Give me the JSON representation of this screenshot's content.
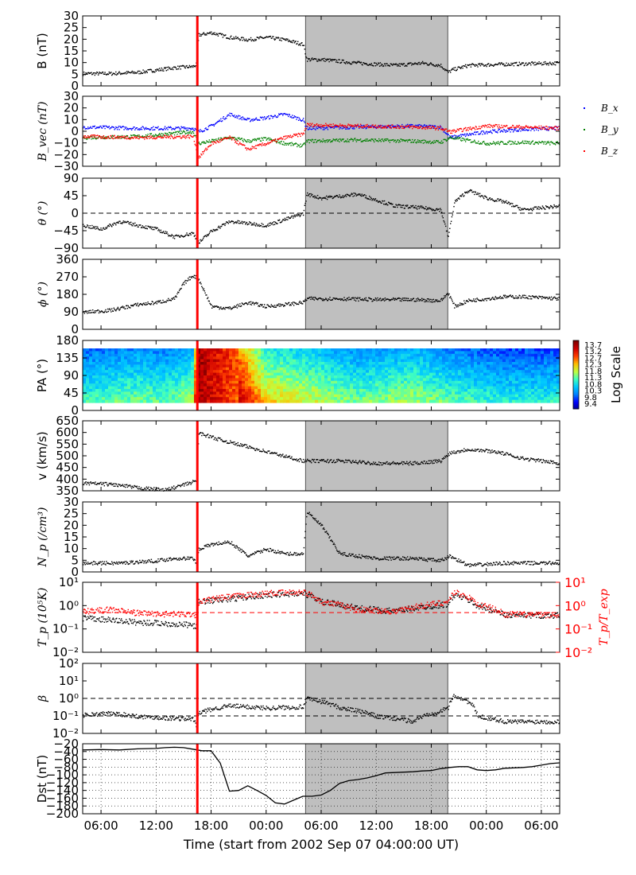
{
  "figure": {
    "xlabel": "Time (start from 2002 Sep 07 04:00:00 UT)",
    "x_ticks": [
      "06:00",
      "12:00",
      "18:00",
      "00:00",
      "06:00",
      "12:00",
      "18:00",
      "00:00",
      "06:00"
    ],
    "shock_color": "#ff0000",
    "shade_color": "#bfbfbf"
  },
  "chart_data": [
    {
      "type": "scatter",
      "panel": "B",
      "ylabel": "B (nT)",
      "ylim": [
        0,
        30
      ],
      "y_ticks": [
        "0",
        "5",
        "10",
        "15",
        "20",
        "25",
        "30"
      ],
      "xlim_hours": [
        0,
        52
      ],
      "shock_time_h": 12.5,
      "shaded_interval_h": [
        24.3,
        39.8
      ],
      "series": [
        {
          "name": "",
          "color": "#000000",
          "x": [
            0,
            3,
            6,
            8,
            10,
            12,
            12.4,
            12.6,
            14,
            16,
            18,
            20,
            22,
            24,
            24.4,
            26,
            30,
            34,
            37,
            39,
            39.8,
            40.2,
            42,
            46,
            52
          ],
          "y": [
            5.5,
            5.5,
            6,
            7,
            8,
            8.5,
            9.5,
            22,
            23,
            21,
            20,
            21,
            20,
            18,
            11.5,
            11.5,
            10,
            9,
            10,
            9,
            6,
            7,
            9,
            9.5,
            10
          ]
        }
      ]
    },
    {
      "type": "scatter",
      "panel": "Bvec",
      "ylabel": "B_vec (nT)",
      "ylim": [
        -30,
        30
      ],
      "y_ticks": [
        "−30",
        "−20",
        "−10",
        "0",
        "10",
        "20",
        "30"
      ],
      "legend": [
        "B_x",
        "B_y",
        "B_z"
      ],
      "legend_position": "right outside",
      "series": [
        {
          "name": "B_x",
          "color": "#0000ff",
          "x": [
            0,
            6,
            12,
            12.6,
            14,
            16,
            18,
            20,
            22,
            24,
            24.4,
            30,
            36,
            39,
            40,
            44,
            48,
            52
          ],
          "y": [
            4,
            3,
            3,
            0,
            5,
            15,
            10,
            12,
            15,
            10,
            3,
            4,
            5,
            4,
            -5,
            0,
            2,
            3
          ]
        },
        {
          "name": "B_y",
          "color": "#008000",
          "x": [
            0,
            6,
            12,
            12.6,
            14,
            16,
            18,
            20,
            22,
            24,
            24.4,
            30,
            36,
            39,
            40,
            44,
            48,
            52
          ],
          "y": [
            -5,
            -4,
            0,
            -10,
            -8,
            -5,
            -8,
            -6,
            -10,
            -12,
            -8,
            -7,
            -8,
            -9,
            -5,
            -10,
            -9,
            -10
          ]
        },
        {
          "name": "B_z",
          "color": "#ff0000",
          "x": [
            0,
            6,
            12,
            12.6,
            14,
            16,
            18,
            20,
            22,
            24,
            24.4,
            30,
            36,
            39,
            40,
            44,
            48,
            52
          ],
          "y": [
            -4,
            -5,
            -4,
            -22,
            -10,
            -5,
            -15,
            -10,
            -5,
            -2,
            6,
            5,
            4,
            3,
            0,
            5,
            4,
            3
          ]
        }
      ]
    },
    {
      "type": "scatter",
      "panel": "theta",
      "ylabel": "θ (°)",
      "ylim": [
        -90,
        90
      ],
      "y_ticks": [
        "−90",
        "−45",
        "0",
        "45",
        "90"
      ],
      "dashed_y": [
        0
      ],
      "series": [
        {
          "name": "",
          "color": "#000000",
          "x": [
            0,
            2,
            4,
            6,
            8,
            10,
            12,
            12.6,
            14,
            16,
            18,
            20,
            22,
            24,
            24.4,
            26,
            30,
            34,
            37,
            39,
            39.8,
            40.5,
            42,
            44,
            46,
            48,
            52
          ],
          "y": [
            -30,
            -40,
            -20,
            -30,
            -40,
            -60,
            -50,
            -75,
            -45,
            -20,
            -25,
            -30,
            -15,
            0,
            50,
            40,
            50,
            20,
            15,
            10,
            -60,
            30,
            60,
            40,
            30,
            10,
            20
          ]
        }
      ]
    },
    {
      "type": "scatter",
      "panel": "phi",
      "ylabel": "ϕ (°)",
      "ylim": [
        0,
        360
      ],
      "y_ticks": [
        "0",
        "90",
        "180",
        "270",
        "360"
      ],
      "series": [
        {
          "name": "",
          "color": "#000000",
          "x": [
            0,
            3,
            6,
            8,
            10,
            11,
            12,
            12.6,
            14,
            16,
            18,
            20,
            22,
            24,
            24.4,
            28,
            32,
            36,
            39,
            39.8,
            40.5,
            42,
            44,
            46,
            48,
            52
          ],
          "y": [
            90,
            100,
            130,
            140,
            160,
            240,
            280,
            260,
            120,
            110,
            140,
            120,
            130,
            140,
            160,
            160,
            155,
            155,
            150,
            190,
            120,
            150,
            160,
            170,
            170,
            160
          ]
        }
      ]
    },
    {
      "type": "heatmap",
      "panel": "PA",
      "ylabel": "PA (°)",
      "ylim": [
        0,
        180
      ],
      "y_ticks": [
        "0",
        "45",
        "90",
        "135",
        "180"
      ],
      "colorbar_label": "Log Scale",
      "colorbar_ticks": [
        "9.4",
        "9.8",
        "10.3",
        "10.8",
        "11.3",
        "11.8",
        "12.3",
        "12.7",
        "13.2",
        "13.7"
      ],
      "colorbar_colors": [
        "#00008b",
        "#0000ff",
        "#0080ff",
        "#00c8ff",
        "#40ffc0",
        "#c0ff40",
        "#ffc000",
        "#ff4000",
        "#d00000",
        "#800000"
      ],
      "intensity_profile": [
        {
          "x": 0,
          "v": 0.25
        },
        {
          "x": 6,
          "v": 0.3
        },
        {
          "x": 9,
          "v": 0.28
        },
        {
          "x": 12,
          "v": 0.35
        },
        {
          "x": 12.6,
          "v": 0.95
        },
        {
          "x": 17,
          "v": 0.75
        },
        {
          "x": 20,
          "v": 0.45
        },
        {
          "x": 24,
          "v": 0.4
        },
        {
          "x": 30,
          "v": 0.3
        },
        {
          "x": 36,
          "v": 0.35
        },
        {
          "x": 40,
          "v": 0.28
        },
        {
          "x": 46,
          "v": 0.22
        },
        {
          "x": 52,
          "v": 0.22
        }
      ]
    },
    {
      "type": "scatter",
      "panel": "v",
      "ylabel": "v (km/s)",
      "ylim": [
        350,
        650
      ],
      "y_ticks": [
        "350",
        "400",
        "450",
        "500",
        "550",
        "600",
        "650"
      ],
      "series": [
        {
          "name": "",
          "color": "#000000",
          "x": [
            0,
            3,
            6,
            9,
            12,
            12.4,
            12.6,
            15,
            18,
            21,
            24,
            28,
            32,
            36,
            39,
            40,
            42,
            45,
            48,
            52
          ],
          "y": [
            385,
            380,
            365,
            355,
            390,
            400,
            600,
            570,
            540,
            510,
            480,
            480,
            470,
            470,
            480,
            515,
            530,
            520,
            490,
            470
          ]
        }
      ]
    },
    {
      "type": "scatter",
      "panel": "Np",
      "ylabel": "N_p (/cm³)",
      "ylim": [
        0,
        30
      ],
      "y_ticks": [
        "0",
        "5",
        "10",
        "15",
        "20",
        "25",
        "30"
      ],
      "series": [
        {
          "name": "",
          "color": "#000000",
          "x": [
            0,
            4,
            8,
            10,
            12,
            12.4,
            12.6,
            14,
            16,
            18,
            20,
            22,
            24,
            24.4,
            26,
            28,
            32,
            36,
            39,
            40,
            42,
            46,
            52
          ],
          "y": [
            4,
            4,
            5,
            6,
            6,
            4,
            10,
            12,
            13,
            7,
            10,
            8,
            8,
            26,
            20,
            8,
            6,
            6,
            5,
            7,
            3,
            4,
            4
          ]
        }
      ]
    },
    {
      "type": "scatter",
      "panel": "Tp",
      "ylabel": "T_p (10⁵K)",
      "ylabel_right": "T_p/T_exp",
      "y_scale": "log",
      "ylim": [
        0.01,
        10
      ],
      "y_ticks": [
        "10⁻²",
        "10⁻¹",
        "10⁰",
        "10¹"
      ],
      "y2_ticks": [
        "10⁻²",
        "10⁻¹",
        "10⁰",
        "10¹"
      ],
      "dashed_y2": [
        0.5
      ],
      "series": [
        {
          "name": "",
          "color": "#000000",
          "x": [
            0,
            3,
            6,
            9,
            12,
            12.4,
            12.6,
            16,
            20,
            24,
            26,
            30,
            34,
            38,
            39.8,
            40.5,
            43,
            46,
            52
          ],
          "y": [
            0.3,
            0.25,
            0.2,
            0.18,
            0.15,
            0.12,
            1.5,
            2,
            3,
            3.5,
            1.5,
            0.8,
            0.6,
            1,
            1.2,
            3,
            1,
            0.4,
            0.4
          ]
        },
        {
          "name": "",
          "color": "#ff0000",
          "x": [
            0,
            3,
            6,
            9,
            12,
            12.4,
            12.6,
            16,
            20,
            24,
            26,
            30,
            34,
            38,
            39.8,
            40.5,
            43,
            46,
            52
          ],
          "y": [
            0.6,
            0.7,
            0.5,
            0.45,
            0.45,
            0.4,
            1.5,
            2.5,
            3.5,
            4,
            1.5,
            0.7,
            0.6,
            1.2,
            1.5,
            4,
            1.2,
            0.45,
            0.4
          ]
        }
      ]
    },
    {
      "type": "scatter",
      "panel": "beta",
      "ylabel": "β",
      "y_scale": "log",
      "ylim": [
        0.01,
        100
      ],
      "y_ticks": [
        "10⁻²",
        "10⁻¹",
        "10⁰",
        "10¹",
        "10²"
      ],
      "dashed_y": [
        1,
        0.1
      ],
      "series": [
        {
          "name": "",
          "color": "#000000",
          "x": [
            0,
            3,
            6,
            9,
            12,
            12.4,
            12.6,
            16,
            20,
            24,
            24.4,
            28,
            32,
            36,
            39,
            39.8,
            40.5,
            43,
            46,
            52
          ],
          "y": [
            0.12,
            0.15,
            0.1,
            0.08,
            0.07,
            0.02,
            0.15,
            0.4,
            0.3,
            0.35,
            1,
            0.3,
            0.1,
            0.05,
            0.2,
            0.3,
            1.5,
            0.1,
            0.05,
            0.05
          ]
        }
      ]
    },
    {
      "type": "line",
      "panel": "Dst",
      "ylabel": "Dst (nT)",
      "ylim": [
        -200,
        -20
      ],
      "y_ticks": [
        "−200",
        "−180",
        "−160",
        "−140",
        "−120",
        "−100",
        "−80",
        "−60",
        "−40",
        "−20"
      ],
      "dotted_grid_y": true,
      "series": [
        {
          "name": "",
          "color": "#000000",
          "x": [
            0,
            2,
            4,
            6,
            8,
            9,
            10,
            11,
            12,
            13,
            14,
            15,
            16,
            17,
            18,
            19,
            20,
            21,
            22,
            23,
            24,
            25,
            26,
            27,
            28,
            29,
            30,
            31,
            32,
            33,
            34,
            35,
            36,
            37,
            38,
            39,
            40,
            41,
            42,
            43,
            44,
            45,
            46,
            47,
            48,
            49,
            50,
            51,
            52
          ],
          "y": [
            -36,
            -35,
            -36,
            -33,
            -32,
            -30,
            -29,
            -30,
            -34,
            -38,
            -38,
            -70,
            -142,
            -140,
            -128,
            -140,
            -153,
            -172,
            -175,
            -165,
            -155,
            -155,
            -152,
            -140,
            -122,
            -115,
            -112,
            -108,
            -102,
            -95,
            -94,
            -93,
            -92,
            -90,
            -89,
            -84,
            -81,
            -79,
            -79,
            -87,
            -89,
            -87,
            -83,
            -82,
            -81,
            -79,
            -75,
            -71,
            -69
          ]
        }
      ]
    }
  ]
}
